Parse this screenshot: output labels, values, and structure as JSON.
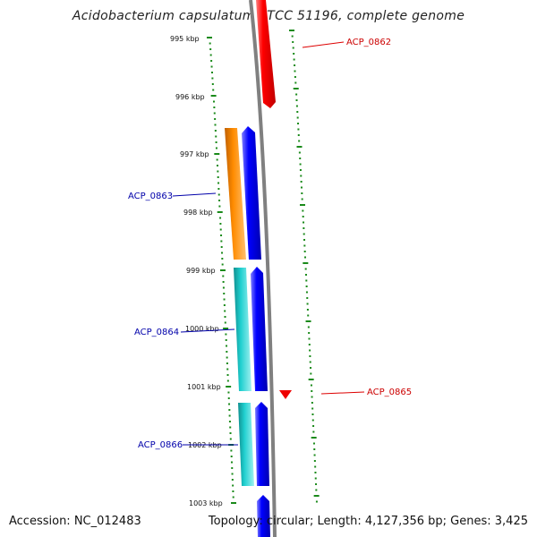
{
  "title": "Acidobacterium capsulatum ATCC 51196, complete genome",
  "footer": {
    "accession": "Accession: NC_012483",
    "summary": "Topology: circular; Length: 4,127,356 bp; Genes: 3,425"
  },
  "colors": {
    "backbone": "#7a7a7a",
    "tick": "#1a8a1a",
    "forward_gene": "#ee0000",
    "reverse_gene": "#0000ee",
    "orange_feature": "#ff8c00",
    "cyan_feature": "#1fcfcf",
    "forward_label": "#cc0000",
    "reverse_label": "#0000aa"
  },
  "scale_labels": [
    "995 kbp",
    "996 kbp",
    "997 kbp",
    "998 kbp",
    "999 kbp",
    "1000 kbp",
    "1001 kbp",
    "1002 kbp",
    "1003 kbp"
  ],
  "genes": [
    {
      "label": "ACP_0862",
      "strand": "forward"
    },
    {
      "label": "ACP_0863",
      "strand": "reverse"
    },
    {
      "label": "ACP_0864",
      "strand": "reverse"
    },
    {
      "label": "ACP_0865",
      "strand": "forward"
    },
    {
      "label": "ACP_0866",
      "strand": "reverse"
    }
  ]
}
